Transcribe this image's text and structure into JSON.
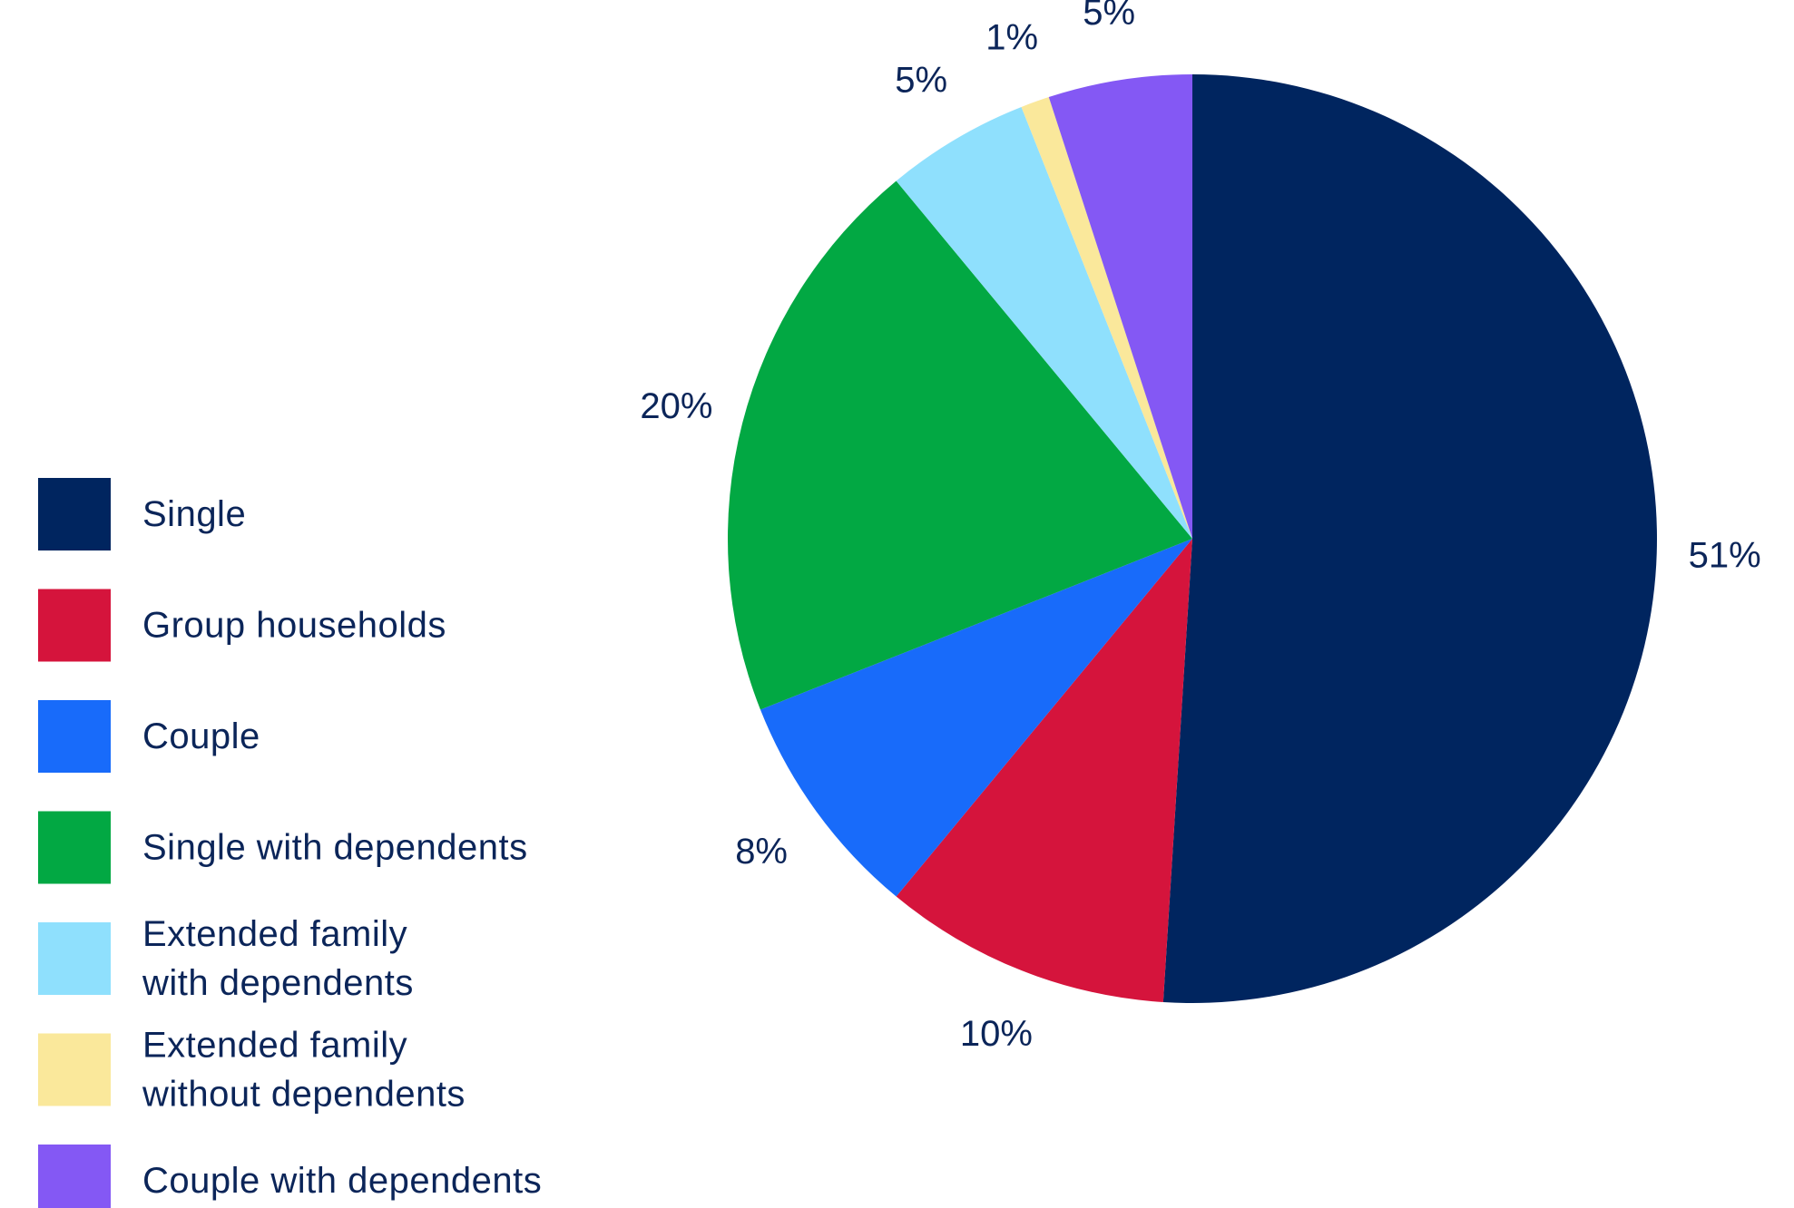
{
  "chart_data": {
    "type": "pie",
    "title": "",
    "start_angle_deg": 0,
    "direction": "clockwise",
    "legend_position": "left-bottom",
    "slices": [
      {
        "name": "Single",
        "legend_lines": [
          "Single"
        ],
        "value": 51,
        "label": "51%",
        "color": "#00255f"
      },
      {
        "name": "Group households",
        "legend_lines": [
          "Group households"
        ],
        "value": 10,
        "label": "10%",
        "color": "#d5143c"
      },
      {
        "name": "Couple",
        "legend_lines": [
          "Couple"
        ],
        "value": 8,
        "label": "8%",
        "color": "#186bfa"
      },
      {
        "name": "Single with dependents",
        "legend_lines": [
          "Single with dependents"
        ],
        "value": 20,
        "label": "20%",
        "color": "#02a843"
      },
      {
        "name": "Extended family with dependents",
        "legend_lines": [
          "Extended family",
          "with dependents"
        ],
        "value": 5,
        "label": "5%",
        "color": "#8fe0fd"
      },
      {
        "name": "Extended family without dependents",
        "legend_lines": [
          "Extended family",
          "without dependents"
        ],
        "value": 1,
        "label": "1%",
        "color": "#fae89b"
      },
      {
        "name": "Couple with dependents",
        "legend_lines": [
          "Couple with dependents"
        ],
        "value": 5,
        "label": "5%",
        "color": "#8458f4"
      }
    ]
  }
}
